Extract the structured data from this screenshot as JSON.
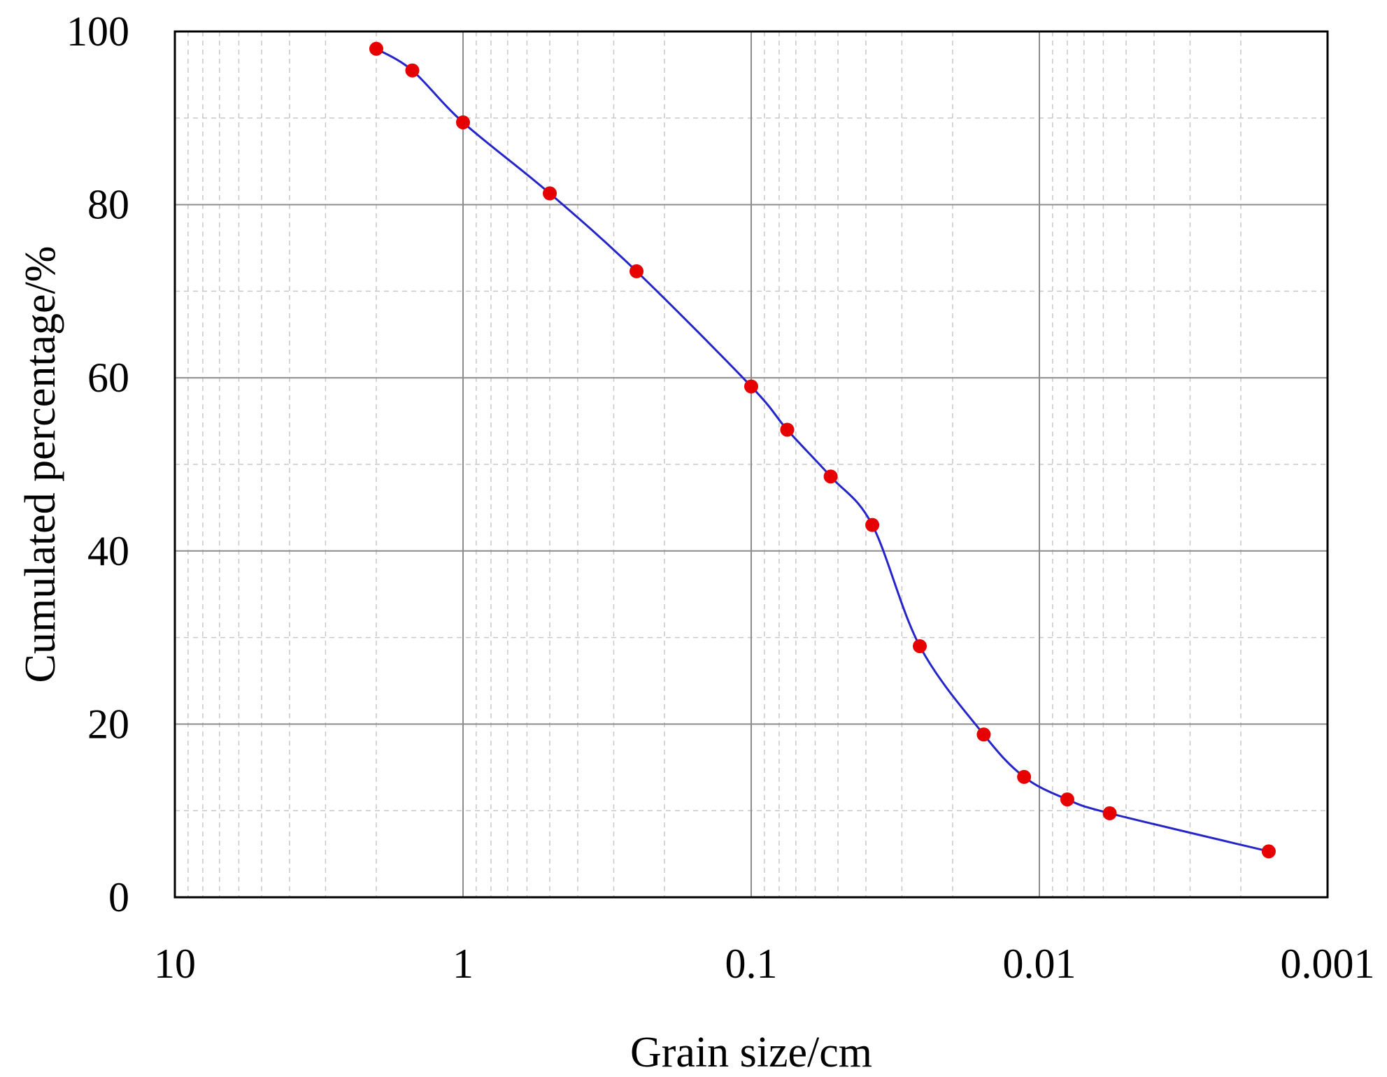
{
  "chart_data": {
    "type": "line",
    "title": "",
    "xlabel": "Grain size/cm",
    "ylabel": "Cumulated percentage/%",
    "x_scale": "log",
    "x_reversed": true,
    "xlim": [
      10,
      0.001
    ],
    "ylim": [
      0,
      100
    ],
    "xticks": [
      {
        "value": 10,
        "label": "10"
      },
      {
        "value": 1,
        "label": "1"
      },
      {
        "value": 0.1,
        "label": "0.1"
      },
      {
        "value": 0.01,
        "label": "0.01"
      },
      {
        "value": 0.001,
        "label": "0.001"
      }
    ],
    "yticks": [
      {
        "value": 0,
        "label": "0"
      },
      {
        "value": 20,
        "label": "20"
      },
      {
        "value": 40,
        "label": "40"
      },
      {
        "value": 60,
        "label": "60"
      },
      {
        "value": 80,
        "label": "80"
      },
      {
        "value": 100,
        "label": "100"
      }
    ],
    "grid": {
      "major": true,
      "minor": true
    },
    "legend": "none",
    "series": [
      {
        "line_color": "#2525c8",
        "marker_color": "#e60000",
        "points": [
          {
            "x": 2,
            "y": 98
          },
          {
            "x": 1.5,
            "y": 95.5
          },
          {
            "x": 1,
            "y": 89.5
          },
          {
            "x": 0.5,
            "y": 81.3
          },
          {
            "x": 0.25,
            "y": 72.3
          },
          {
            "x": 0.1,
            "y": 59
          },
          {
            "x": 0.075,
            "y": 54
          },
          {
            "x": 0.053,
            "y": 48.6
          },
          {
            "x": 0.038,
            "y": 43
          },
          {
            "x": 0.026,
            "y": 29
          },
          {
            "x": 0.0156,
            "y": 18.8
          },
          {
            "x": 0.0113,
            "y": 13.9
          },
          {
            "x": 0.008,
            "y": 11.3
          },
          {
            "x": 0.0057,
            "y": 9.7
          },
          {
            "x": 0.0016,
            "y": 5.3
          }
        ]
      }
    ]
  }
}
